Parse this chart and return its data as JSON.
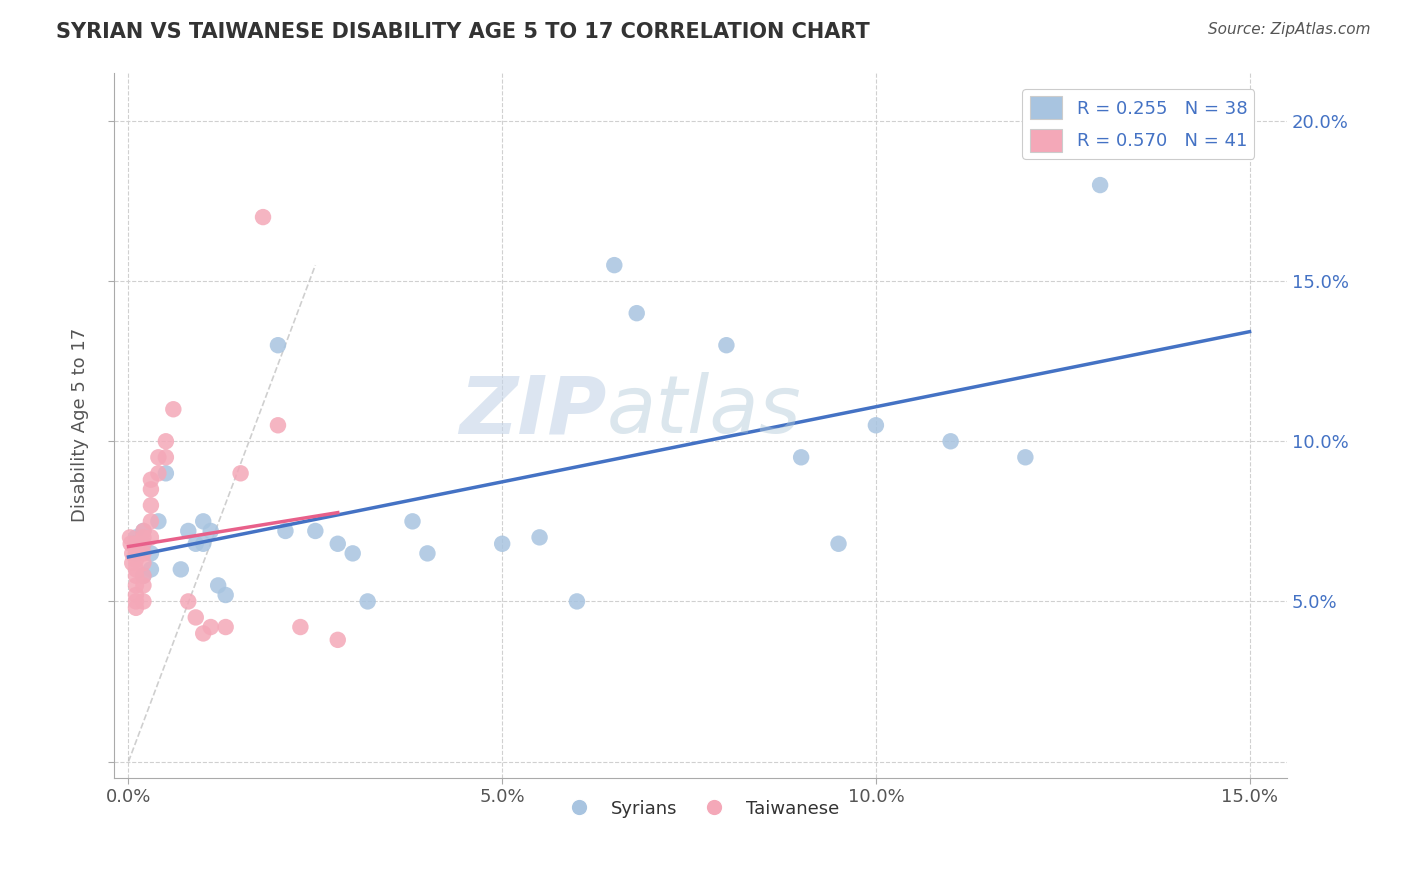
{
  "title": "SYRIAN VS TAIWANESE DISABILITY AGE 5 TO 17 CORRELATION CHART",
  "source": "Source: ZipAtlas.com",
  "ylabel": "Disability Age 5 to 17",
  "xlim": [
    -0.002,
    0.155
  ],
  "ylim": [
    -0.005,
    0.215
  ],
  "xticks": [
    0.0,
    0.05,
    0.1,
    0.15
  ],
  "xtick_labels": [
    "0.0%",
    "5.0%",
    "10.0%",
    "15.0%"
  ],
  "yticks": [
    0.0,
    0.05,
    0.1,
    0.15,
    0.2
  ],
  "ytick_labels": [
    "",
    "5.0%",
    "10.0%",
    "15.0%",
    "20.0%"
  ],
  "syrians_R": 0.255,
  "syrians_N": 38,
  "taiwanese_R": 0.57,
  "taiwanese_N": 41,
  "syrian_color": "#a8c4e0",
  "taiwanese_color": "#f4a8b8",
  "syrian_line_color": "#4472C4",
  "taiwanese_line_color": "#E8608A",
  "syrian_x": [
    0.001,
    0.001,
    0.001,
    0.002,
    0.002,
    0.002,
    0.003,
    0.003,
    0.004,
    0.005,
    0.007,
    0.008,
    0.009,
    0.01,
    0.01,
    0.011,
    0.012,
    0.013,
    0.02,
    0.021,
    0.025,
    0.028,
    0.03,
    0.032,
    0.038,
    0.04,
    0.05,
    0.055,
    0.06,
    0.065,
    0.068,
    0.08,
    0.09,
    0.095,
    0.1,
    0.11,
    0.12,
    0.13
  ],
  "syrian_y": [
    0.07,
    0.068,
    0.065,
    0.072,
    0.068,
    0.058,
    0.065,
    0.06,
    0.075,
    0.09,
    0.06,
    0.072,
    0.068,
    0.075,
    0.068,
    0.072,
    0.055,
    0.052,
    0.13,
    0.072,
    0.072,
    0.068,
    0.065,
    0.05,
    0.075,
    0.065,
    0.068,
    0.07,
    0.05,
    0.155,
    0.14,
    0.13,
    0.095,
    0.068,
    0.105,
    0.1,
    0.095,
    0.18
  ],
  "taiwanese_x": [
    0.0002,
    0.0003,
    0.0005,
    0.0005,
    0.001,
    0.001,
    0.001,
    0.001,
    0.001,
    0.001,
    0.001,
    0.001,
    0.001,
    0.002,
    0.002,
    0.002,
    0.002,
    0.002,
    0.002,
    0.002,
    0.002,
    0.003,
    0.003,
    0.003,
    0.003,
    0.003,
    0.004,
    0.004,
    0.005,
    0.005,
    0.006,
    0.008,
    0.009,
    0.01,
    0.011,
    0.013,
    0.015,
    0.018,
    0.02,
    0.023,
    0.028
  ],
  "taiwanese_y": [
    0.07,
    0.068,
    0.065,
    0.062,
    0.068,
    0.065,
    0.063,
    0.06,
    0.058,
    0.055,
    0.052,
    0.05,
    0.048,
    0.072,
    0.07,
    0.068,
    0.065,
    0.062,
    0.058,
    0.055,
    0.05,
    0.088,
    0.085,
    0.08,
    0.075,
    0.07,
    0.095,
    0.09,
    0.1,
    0.095,
    0.11,
    0.05,
    0.045,
    0.04,
    0.042,
    0.042,
    0.09,
    0.17,
    0.105,
    0.042,
    0.038
  ],
  "watermark_zip": "ZIP",
  "watermark_atlas": "atlas",
  "background_color": "#ffffff",
  "grid_color": "#d0d0d0"
}
